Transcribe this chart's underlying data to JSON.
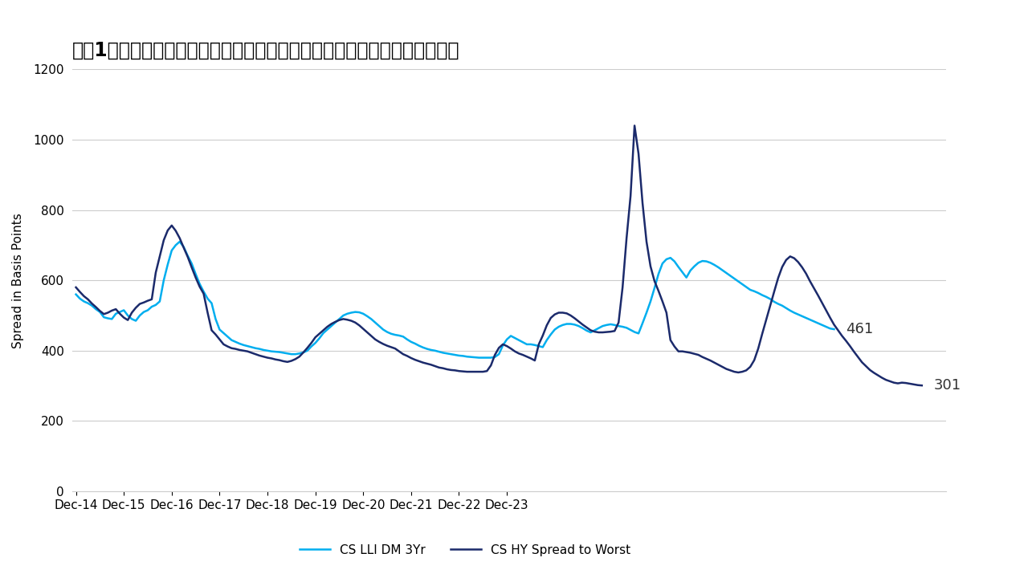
{
  "title": "図袆1：ハイイールド・スプレッドはローン・スプレッドよりも急速に縮小",
  "ylabel": "Spread in Basis Points",
  "ylim": [
    0,
    1200
  ],
  "yticks": [
    0,
    200,
    400,
    600,
    800,
    1000,
    1200
  ],
  "line1_label": "CS LLI DM 3Yr",
  "line1_color": "#00AEEF",
  "line2_label": "CS HY Spread to Worst",
  "line2_color": "#1B2A6B",
  "end_label1": "461",
  "end_label2": "301",
  "background_color": "#FFFFFF",
  "title_fontsize": 17,
  "axis_label_fontsize": 11,
  "tick_fontsize": 11,
  "x_tick_labels": [
    "Dec-14",
    "Dec-15",
    "Dec-16",
    "Dec-17",
    "Dec-18",
    "Dec-19",
    "Dec-20",
    "Dec-21",
    "Dec-22",
    "Dec-23"
  ],
  "cs_lli": [
    560,
    548,
    540,
    535,
    528,
    518,
    510,
    495,
    492,
    490,
    505,
    510,
    515,
    500,
    490,
    485,
    500,
    510,
    515,
    525,
    530,
    540,
    600,
    645,
    685,
    700,
    710,
    695,
    670,
    648,
    618,
    590,
    568,
    548,
    535,
    490,
    460,
    450,
    440,
    430,
    425,
    420,
    416,
    413,
    410,
    407,
    405,
    402,
    400,
    398,
    397,
    396,
    394,
    392,
    390,
    390,
    392,
    395,
    400,
    412,
    422,
    435,
    450,
    460,
    470,
    480,
    490,
    500,
    505,
    508,
    510,
    509,
    505,
    498,
    490,
    480,
    470,
    460,
    453,
    448,
    445,
    443,
    440,
    432,
    425,
    420,
    414,
    409,
    405,
    402,
    400,
    397,
    394,
    392,
    390,
    388,
    386,
    385,
    383,
    382,
    381,
    380,
    380,
    380,
    380,
    382,
    390,
    415,
    432,
    442,
    436,
    430,
    424,
    418,
    418,
    416,
    413,
    410,
    430,
    446,
    460,
    468,
    473,
    476,
    476,
    474,
    470,
    464,
    457,
    452,
    458,
    464,
    470,
    473,
    475,
    473,
    470,
    468,
    465,
    459,
    453,
    449,
    478,
    508,
    540,
    578,
    618,
    648,
    660,
    664,
    654,
    638,
    623,
    608,
    628,
    640,
    650,
    655,
    654,
    650,
    644,
    637,
    629,
    621,
    613,
    605,
    597,
    589,
    581,
    573,
    569,
    564,
    558,
    553,
    547,
    539,
    533,
    528,
    521,
    514,
    508,
    503,
    498,
    493,
    488,
    483,
    478,
    473,
    468,
    463,
    461
  ],
  "cs_hy": [
    580,
    567,
    555,
    546,
    534,
    524,
    513,
    504,
    508,
    514,
    518,
    505,
    494,
    487,
    508,
    522,
    533,
    537,
    542,
    546,
    622,
    668,
    714,
    742,
    756,
    741,
    720,
    693,
    667,
    637,
    608,
    582,
    562,
    508,
    458,
    446,
    432,
    418,
    412,
    407,
    405,
    402,
    400,
    398,
    394,
    390,
    386,
    383,
    380,
    378,
    375,
    373,
    370,
    368,
    371,
    376,
    383,
    395,
    408,
    422,
    438,
    448,
    458,
    468,
    476,
    482,
    487,
    490,
    488,
    485,
    480,
    472,
    462,
    452,
    442,
    432,
    425,
    419,
    414,
    410,
    406,
    398,
    390,
    385,
    379,
    374,
    370,
    366,
    363,
    360,
    356,
    352,
    350,
    347,
    345,
    344,
    342,
    341,
    340,
    340,
    340,
    340,
    340,
    342,
    358,
    388,
    408,
    418,
    413,
    406,
    398,
    392,
    388,
    383,
    378,
    372,
    418,
    443,
    472,
    493,
    503,
    508,
    508,
    506,
    500,
    492,
    483,
    474,
    466,
    458,
    454,
    452,
    452,
    453,
    454,
    456,
    480,
    580,
    720,
    840,
    1040,
    960,
    820,
    710,
    640,
    598,
    570,
    540,
    508,
    430,
    412,
    398,
    398,
    396,
    394,
    391,
    388,
    382,
    377,
    372,
    366,
    360,
    354,
    348,
    344,
    340,
    338,
    340,
    344,
    354,
    373,
    406,
    448,
    488,
    528,
    568,
    607,
    638,
    658,
    668,
    663,
    652,
    637,
    619,
    597,
    577,
    557,
    536,
    515,
    494,
    474,
    458,
    442,
    428,
    413,
    397,
    382,
    367,
    356,
    345,
    337,
    330,
    323,
    317,
    313,
    309,
    307,
    309,
    308,
    306,
    304,
    302,
    301
  ]
}
